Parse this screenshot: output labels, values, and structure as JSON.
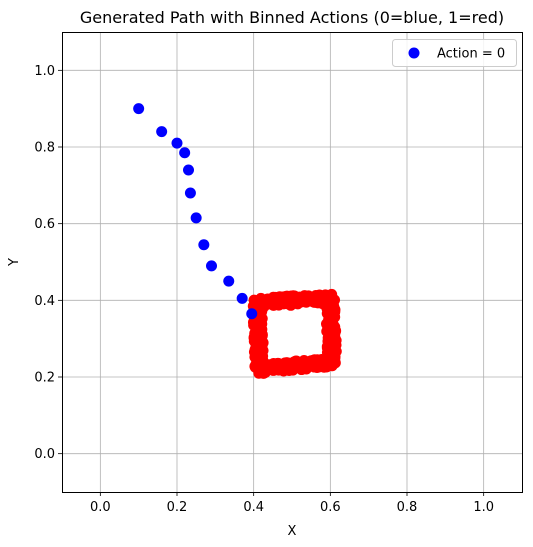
{
  "chart_data": {
    "type": "scatter",
    "title": "Generated Path with Binned Actions (0=blue, 1=red)",
    "xlabel": "X",
    "ylabel": "Y",
    "xlim": [
      -0.1,
      1.1
    ],
    "ylim": [
      -0.1,
      1.1
    ],
    "xticks": [
      "0.0",
      "0.2",
      "0.4",
      "0.6",
      "0.8",
      "1.0"
    ],
    "yticks": [
      "0.0",
      "0.2",
      "0.4",
      "0.6",
      "0.8",
      "1.0"
    ],
    "grid": true,
    "legend_position": "top-right",
    "colors": {
      "action_0": "#0000ff",
      "action_1": "#ff0000"
    },
    "series": [
      {
        "name": "Action = 0",
        "color": "#0000ff",
        "points": [
          [
            0.1,
            0.9
          ],
          [
            0.16,
            0.84
          ],
          [
            0.2,
            0.81
          ],
          [
            0.22,
            0.785
          ],
          [
            0.23,
            0.74
          ],
          [
            0.235,
            0.68
          ],
          [
            0.25,
            0.615
          ],
          [
            0.27,
            0.545
          ],
          [
            0.29,
            0.49
          ],
          [
            0.335,
            0.45
          ],
          [
            0.37,
            0.405
          ],
          [
            0.395,
            0.365
          ]
        ]
      },
      {
        "color": "#ff0000",
        "loop": {
          "corners": [
            [
              0.41,
              0.395
            ],
            [
              0.6,
              0.405
            ],
            [
              0.605,
              0.24
            ],
            [
              0.415,
              0.22
            ]
          ],
          "cycles": 4,
          "jitter": 0.012
        }
      }
    ]
  }
}
